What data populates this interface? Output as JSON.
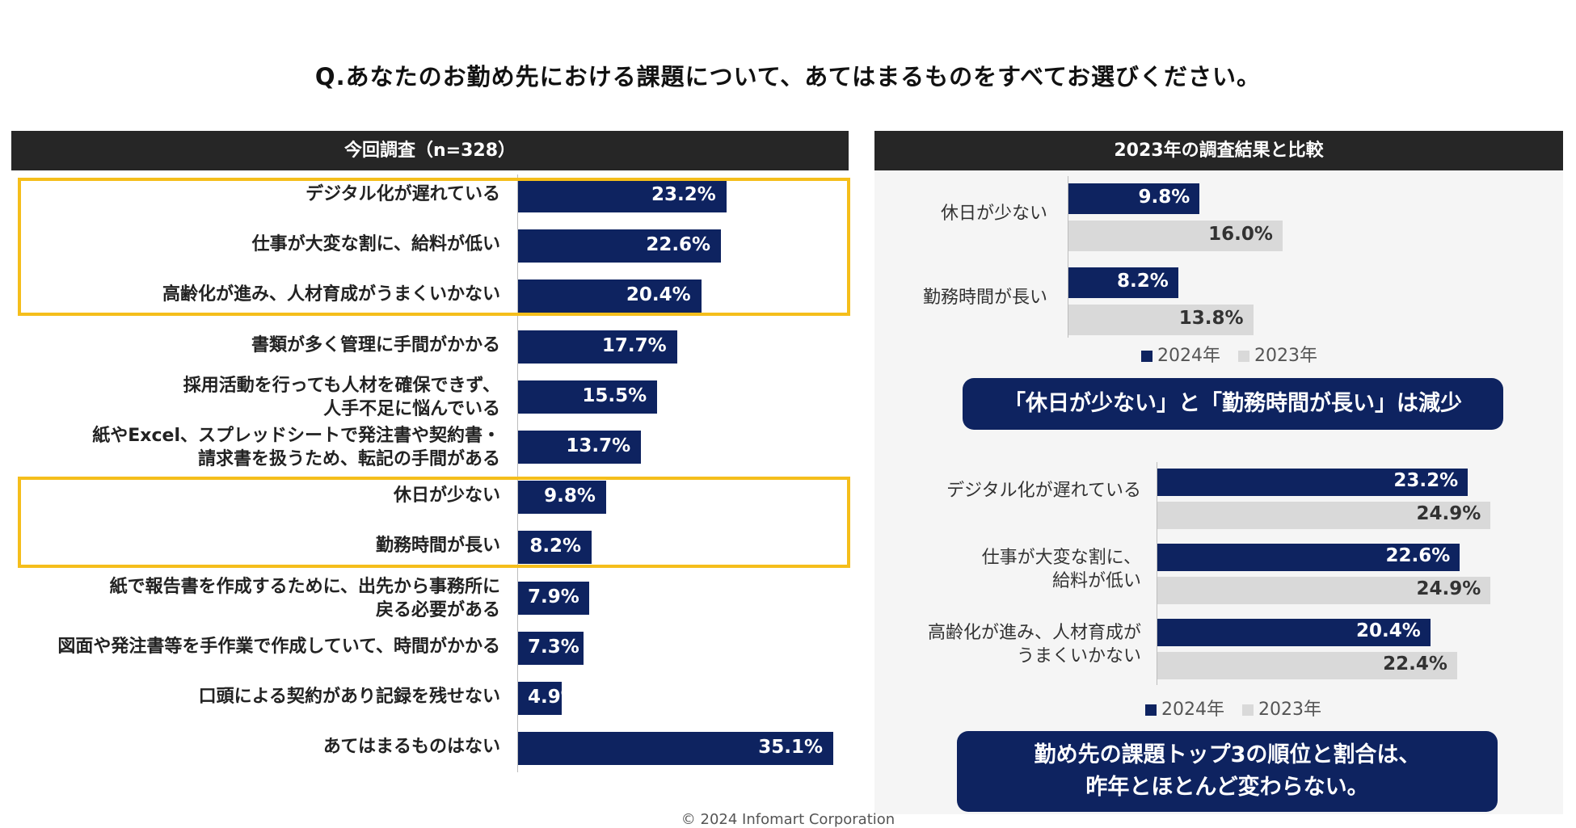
{
  "question": "Q.あなたのお勤め先における課題について、あてはまるものをすべてお選びください。",
  "left_header": "今回調査（n=328）",
  "right_header": "2023年の調査結果と比較",
  "callout1": "「休日が少ない」と「勤務時間が長い」は減少",
  "callout2": "勤め先の課題トップ3の順位と割合は、\n昨年とほとんど変わらない。",
  "copyright": "© 2024 Infomart Corporation",
  "colors": {
    "navy": "#0e2360",
    "grey": "#d9d9d9",
    "highlight": "#f5be1b",
    "header": "#262626"
  },
  "chart_data": [
    {
      "type": "bar",
      "orientation": "horizontal",
      "title": "今回調査（n=328）",
      "categories": [
        "デジタル化が遅れている",
        "仕事が大変な割に、給料が低い",
        "高齢化が進み、人材育成がうまくいかない",
        "書類が多く管理に手間がかかる",
        "採用活動を行っても人材を確保できず、\n人手不足に悩んでいる",
        "紙やExcel、スプレッドシートで発注書や契約書・\n請求書を扱うため、転記の手間がある",
        "休日が少ない",
        "勤務時間が長い",
        "紙で報告書を作成するために、出先から事務所に\n戻る必要がある",
        "図面や発注書等を手作業で作成していて、時間がかかる",
        "口頭による契約があり記録を残せない",
        "あてはまるものはない"
      ],
      "values": [
        23.2,
        22.6,
        20.4,
        17.7,
        15.5,
        13.7,
        9.8,
        8.2,
        7.9,
        7.3,
        4.9,
        35.1
      ],
      "value_labels": [
        "23.2%",
        "22.6%",
        "20.4%",
        "17.7%",
        "15.5%",
        "13.7%",
        "9.8%",
        "8.2%",
        "7.9%",
        "7.3%",
        "4.9%",
        "35.1%"
      ],
      "highlighted_groups": [
        [
          0,
          1,
          2
        ],
        [
          6,
          7
        ]
      ],
      "xlim": [
        0,
        35.1
      ]
    },
    {
      "type": "bar",
      "orientation": "horizontal",
      "categories": [
        "休日が少ない",
        "勤務時間が長い"
      ],
      "series": [
        {
          "name": "2024年",
          "values": [
            9.8,
            8.2
          ],
          "value_labels": [
            "9.8%",
            "8.2%"
          ]
        },
        {
          "name": "2023年",
          "values": [
            16.0,
            13.8
          ],
          "value_labels": [
            "16.0%",
            "13.8%"
          ]
        }
      ],
      "legend": [
        "2024年",
        "2023年"
      ],
      "xlim": [
        0,
        25
      ]
    },
    {
      "type": "bar",
      "orientation": "horizontal",
      "categories": [
        "デジタル化が遅れている",
        "仕事が大変な割に、\n給料が低い",
        "高齢化が進み、人材育成が\nうまくいかない"
      ],
      "series": [
        {
          "name": "2024年",
          "values": [
            23.2,
            22.6,
            20.4
          ],
          "value_labels": [
            "23.2%",
            "22.6%",
            "20.4%"
          ]
        },
        {
          "name": "2023年",
          "values": [
            24.9,
            24.9,
            22.4
          ],
          "value_labels": [
            "24.9%",
            "24.9%",
            "22.4%"
          ]
        }
      ],
      "legend": [
        "2024年",
        "2023年"
      ],
      "xlim": [
        0,
        25
      ]
    }
  ]
}
